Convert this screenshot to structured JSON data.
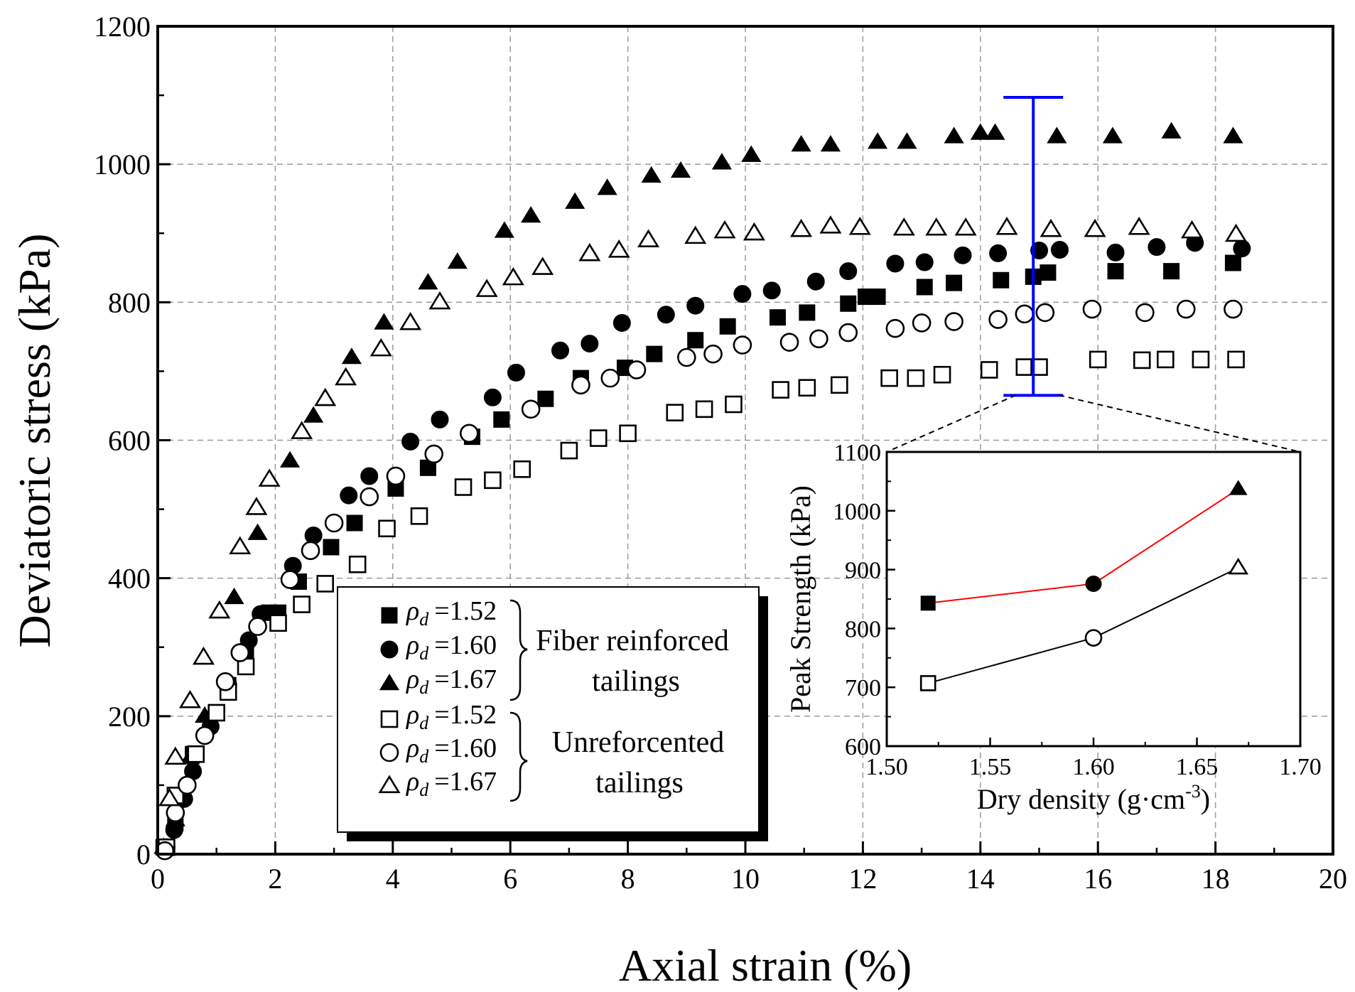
{
  "chart_data": [
    {
      "type": "scatter",
      "xlabel": "Axial strain (%)",
      "ylabel": "Deviatoric stress (kPa)",
      "xlim": [
        0,
        20
      ],
      "ylim": [
        0,
        1200
      ],
      "xticks": [
        "0",
        "2",
        "4",
        "6",
        "8",
        "10",
        "12",
        "14",
        "16",
        "18",
        "20"
      ],
      "yticks": [
        "0",
        "200",
        "400",
        "600",
        "800",
        "1000",
        "1200"
      ],
      "grid": true,
      "legend": {
        "position": "bottom-center",
        "rho_symbol": "ρ",
        "rho_sub": "d",
        "groups": [
          {
            "label_line1": "Fiber reinforced",
            "label_line2": "tailings"
          },
          {
            "label_line1": "Unreforcented",
            "label_line2": "tailings"
          }
        ]
      },
      "error_bar": {
        "x": 14.9,
        "y_low": 665,
        "y_high": 1097,
        "color": "#0000ff"
      },
      "series": [
        {
          "name": "ρd=1.52 fiber",
          "legend_value": "=1.52",
          "marker": "square",
          "filled": true,
          "x": [
            0.1,
            0.3,
            0.6,
            1.2,
            1.5,
            1.9,
            2.05,
            2.4,
            2.95,
            3.35,
            4.05,
            4.6,
            5.35,
            5.85,
            6.6,
            7.2,
            7.95,
            8.45,
            9.15,
            9.7,
            10.55,
            11.05,
            11.75,
            12.25,
            12.05,
            13.05,
            13.55,
            14.35,
            14.9,
            15.15,
            16.3,
            17.25,
            18.3
          ],
          "y": [
            10,
            45,
            145,
            245,
            290,
            350,
            350,
            395,
            445,
            480,
            530,
            560,
            605,
            630,
            660,
            690,
            705,
            725,
            745,
            765,
            778,
            785,
            798,
            808,
            808,
            822,
            828,
            832,
            837,
            843,
            845,
            845,
            857
          ]
        },
        {
          "name": "ρd=1.60 fiber",
          "legend_value": "=1.60",
          "marker": "circle",
          "filled": true,
          "x": [
            0.15,
            0.28,
            0.45,
            0.6,
            0.9,
            1.2,
            1.55,
            1.75,
            2.3,
            2.65,
            3.25,
            3.6,
            4.3,
            4.8,
            5.7,
            6.1,
            6.85,
            7.35,
            7.9,
            8.65,
            9.15,
            9.95,
            10.45,
            11.2,
            11.75,
            12.55,
            13.05,
            13.7,
            14.3,
            15.0,
            15.35,
            16.3,
            17.0,
            17.65,
            18.45
          ],
          "y": [
            10,
            35,
            80,
            120,
            185,
            245,
            310,
            348,
            418,
            462,
            520,
            548,
            598,
            630,
            662,
            698,
            730,
            740,
            770,
            782,
            795,
            812,
            817,
            830,
            845,
            856,
            858,
            868,
            871,
            875,
            876,
            872,
            880,
            886,
            878
          ]
        },
        {
          "name": "ρd=1.67 fiber",
          "legend_value": "=1.67",
          "marker": "triangle",
          "filled": true,
          "x": [
            0.1,
            0.3,
            0.55,
            0.8,
            1.3,
            1.7,
            2.25,
            2.65,
            3.3,
            3.85,
            4.6,
            5.1,
            5.9,
            6.35,
            7.1,
            7.65,
            8.4,
            8.9,
            9.6,
            10.1,
            10.95,
            11.45,
            12.25,
            12.75,
            13.55,
            14.0,
            14.25,
            15.3,
            16.25,
            17.25,
            18.3
          ],
          "y": [
            10,
            50,
            140,
            200,
            372,
            465,
            570,
            635,
            720,
            770,
            828,
            858,
            903,
            925,
            945,
            965,
            983,
            990,
            1002,
            1013,
            1028,
            1028,
            1032,
            1032,
            1040,
            1045,
            1045,
            1040,
            1040,
            1047,
            1040
          ]
        },
        {
          "name": "ρd=1.52 unreinforced",
          "legend_value": "=1.52",
          "marker": "square",
          "filled": false,
          "x": [
            0.15,
            0.3,
            0.65,
            1.0,
            1.2,
            1.5,
            2.05,
            2.45,
            2.85,
            3.4,
            3.9,
            4.45,
            5.2,
            5.7,
            6.2,
            7.0,
            7.5,
            8.0,
            8.8,
            9.3,
            9.8,
            10.6,
            11.05,
            11.6,
            12.45,
            12.9,
            13.35,
            14.15,
            14.75,
            15.0,
            16.0,
            16.75,
            17.15,
            17.75,
            18.35
          ],
          "y": [
            10,
            85,
            145,
            205,
            235,
            272,
            335,
            362,
            392,
            420,
            472,
            490,
            532,
            542,
            558,
            585,
            603,
            610,
            640,
            645,
            652,
            673,
            676,
            680,
            690,
            690,
            695,
            702,
            706,
            706,
            717,
            716,
            717,
            717,
            717
          ]
        },
        {
          "name": "ρd=1.60 unreinforced",
          "legend_value": "=1.60",
          "marker": "circle",
          "filled": false,
          "x": [
            0.12,
            0.3,
            0.5,
            0.8,
            1.15,
            1.4,
            1.7,
            2.25,
            2.6,
            3.0,
            3.6,
            4.05,
            4.7,
            5.3,
            6.35,
            7.2,
            7.7,
            8.15,
            9.0,
            9.45,
            9.95,
            10.75,
            11.25,
            11.75,
            12.55,
            13.0,
            13.55,
            14.3,
            14.75,
            15.1,
            15.9,
            16.8,
            17.5,
            18.3
          ],
          "y": [
            5,
            60,
            100,
            172,
            250,
            292,
            330,
            398,
            440,
            480,
            518,
            548,
            580,
            610,
            645,
            680,
            690,
            702,
            720,
            725,
            738,
            742,
            747,
            756,
            762,
            770,
            772,
            775,
            783,
            785,
            790,
            785,
            790,
            790
          ]
        },
        {
          "name": "ρd=1.67 unreinforced",
          "legend_value": "=1.67",
          "marker": "triangle",
          "filled": false,
          "x": [
            0.2,
            0.3,
            0.55,
            0.78,
            1.05,
            1.4,
            1.68,
            1.9,
            2.45,
            2.85,
            3.2,
            3.8,
            4.3,
            4.8,
            5.6,
            6.05,
            6.55,
            7.35,
            7.85,
            8.35,
            9.15,
            9.65,
            10.15,
            10.95,
            11.45,
            11.95,
            12.7,
            13.25,
            13.75,
            14.45,
            15.2,
            15.95,
            16.7,
            17.6,
            18.35
          ],
          "y": [
            80,
            140,
            222,
            285,
            352,
            445,
            502,
            543,
            612,
            660,
            690,
            732,
            770,
            800,
            818,
            835,
            850,
            870,
            875,
            890,
            895,
            903,
            900,
            905,
            910,
            908,
            907,
            907,
            907,
            908,
            905,
            905,
            908,
            903,
            898
          ]
        }
      ]
    },
    {
      "type": "line",
      "xlabel": "Dry density (g·cm",
      "xlabel_sup": "-3",
      "xlabel_end": ")",
      "ylabel": "Peak Strength (kPa)",
      "xlim": [
        1.5,
        1.7
      ],
      "ylim": [
        600,
        1100
      ],
      "xticks": [
        "1.50",
        "1.55",
        "1.60",
        "1.65",
        "1.70"
      ],
      "yticks": [
        "600",
        "700",
        "800",
        "900",
        "1000",
        "1100"
      ],
      "series": [
        {
          "name": "fiber reinforced",
          "color": "#ff0000",
          "x": [
            1.52,
            1.6,
            1.67
          ],
          "y": [
            843,
            876,
            1037
          ],
          "markers": [
            "square",
            "circle",
            "triangle"
          ],
          "filled": true
        },
        {
          "name": "unreinforced",
          "color": "#000000",
          "x": [
            1.52,
            1.6,
            1.67
          ],
          "y": [
            707,
            784,
            903
          ],
          "markers": [
            "square",
            "circle",
            "triangle"
          ],
          "filled": false
        }
      ]
    }
  ]
}
